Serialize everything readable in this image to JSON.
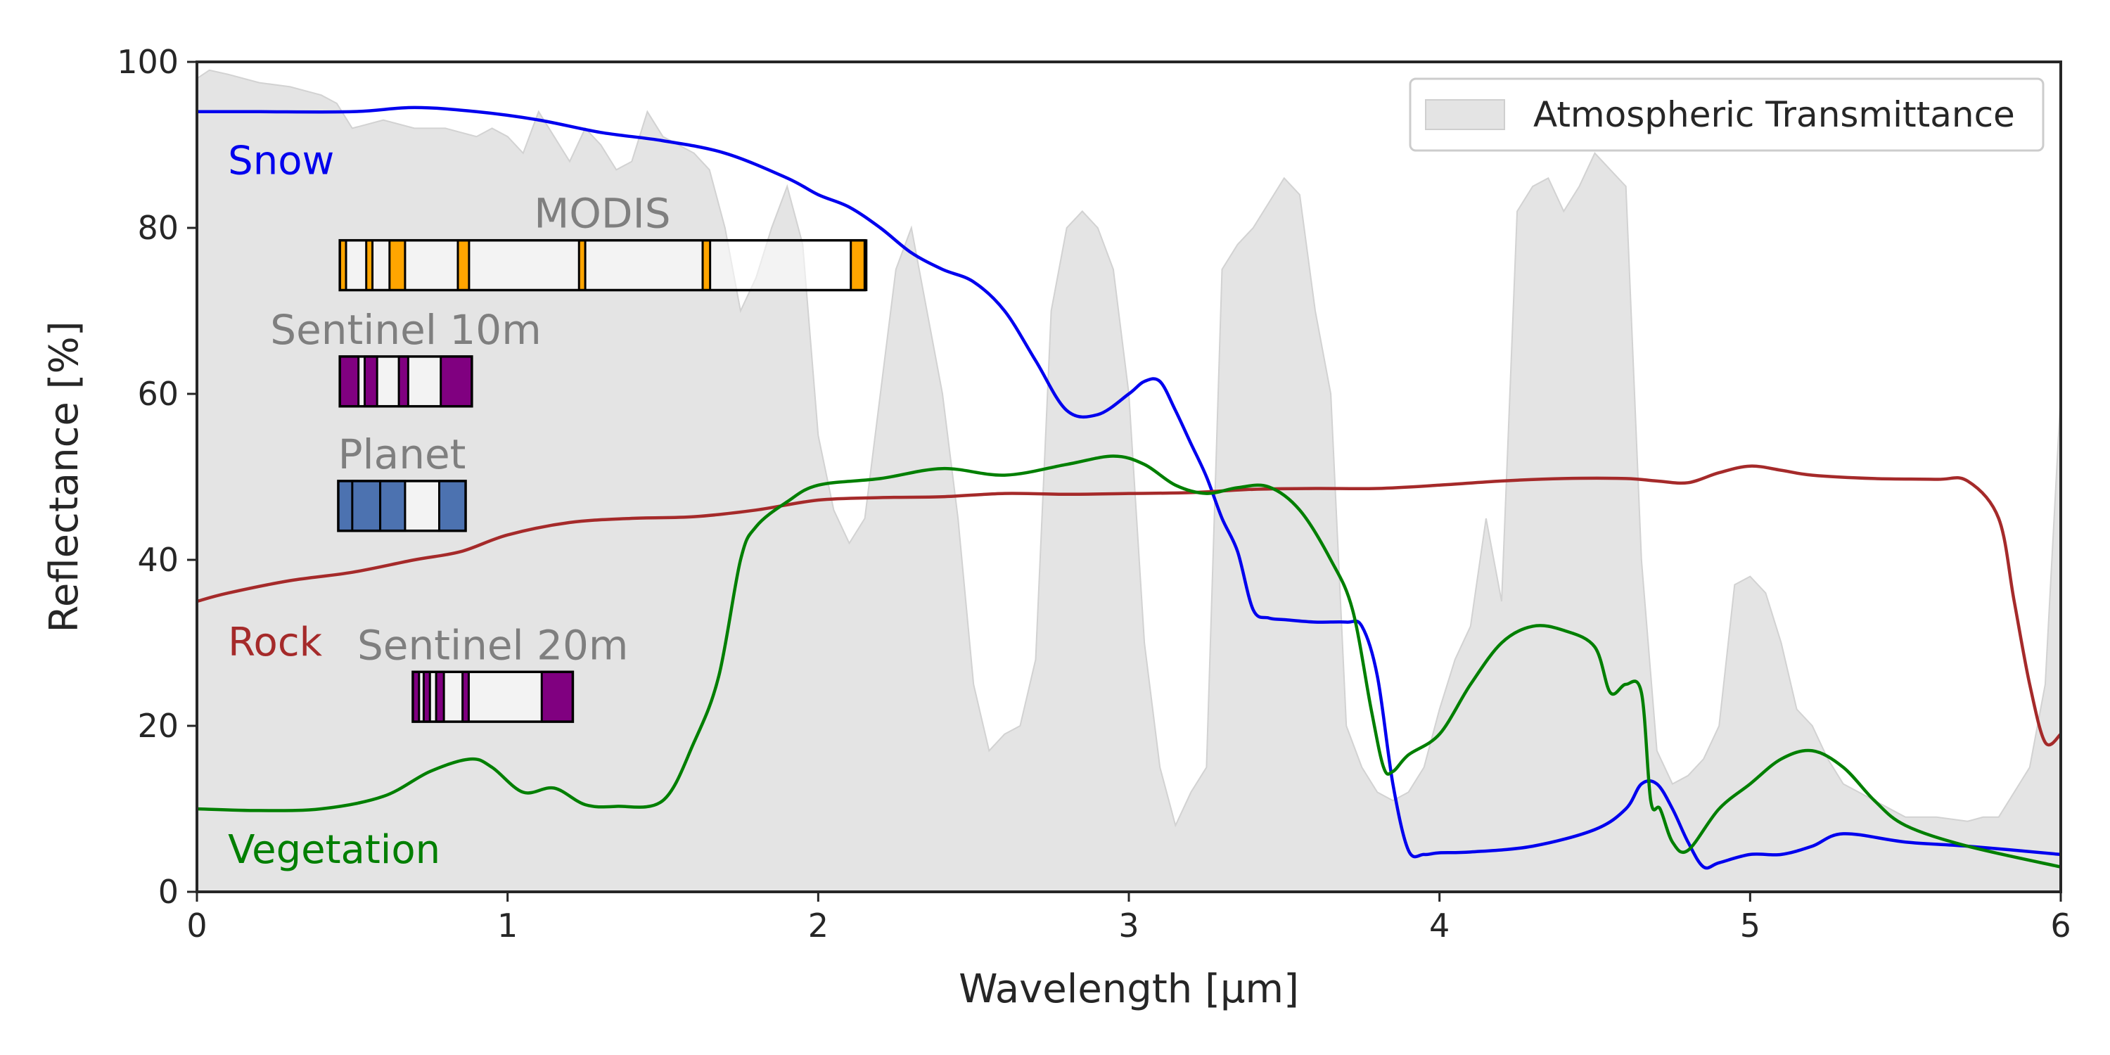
{
  "chart_data": {
    "type": "line",
    "title": "",
    "xlabel": "Wavelength [μm]",
    "ylabel": "Reflectance [%]",
    "xlim": [
      0,
      6
    ],
    "ylim": [
      0,
      100
    ],
    "x_ticks": [
      0,
      1,
      2,
      3,
      4,
      5,
      6
    ],
    "y_ticks": [
      0,
      20,
      40,
      60,
      80,
      100
    ],
    "grid": false,
    "legend": {
      "placement": "top-right",
      "entries": [
        "Atmospheric Transmittance"
      ]
    },
    "area_series": {
      "name": "Atmospheric Transmittance",
      "color": "#e4e4e4",
      "x": [
        0,
        0.04,
        0.1,
        0.2,
        0.3,
        0.4,
        0.45,
        0.5,
        0.6,
        0.7,
        0.8,
        0.9,
        0.95,
        1.0,
        1.05,
        1.1,
        1.15,
        1.2,
        1.25,
        1.3,
        1.35,
        1.4,
        1.45,
        1.5,
        1.55,
        1.6,
        1.65,
        1.7,
        1.75,
        1.8,
        1.85,
        1.9,
        1.95,
        2.0,
        2.05,
        2.1,
        2.15,
        2.2,
        2.25,
        2.3,
        2.35,
        2.4,
        2.45,
        2.5,
        2.55,
        2.6,
        2.65,
        2.7,
        2.75,
        2.8,
        2.85,
        2.9,
        2.95,
        3.0,
        3.05,
        3.1,
        3.15,
        3.2,
        3.25,
        3.3,
        3.35,
        3.4,
        3.45,
        3.5,
        3.55,
        3.6,
        3.65,
        3.7,
        3.75,
        3.8,
        3.85,
        3.9,
        3.95,
        4.0,
        4.05,
        4.1,
        4.15,
        4.2,
        4.25,
        4.3,
        4.35,
        4.4,
        4.45,
        4.5,
        4.55,
        4.6,
        4.65,
        4.7,
        4.75,
        4.8,
        4.85,
        4.9,
        4.95,
        5.0,
        5.05,
        5.1,
        5.15,
        5.2,
        5.25,
        5.3,
        5.35,
        5.4,
        5.5,
        5.6,
        5.7,
        5.75,
        5.8,
        5.85,
        5.9,
        5.95,
        6.0
      ],
      "y": [
        98,
        99,
        98.5,
        97.5,
        97,
        96,
        95,
        92,
        93,
        92,
        92,
        91,
        92,
        91,
        89,
        94,
        91,
        88,
        92,
        90,
        87,
        88,
        94,
        91,
        90,
        89,
        87,
        80,
        70,
        74,
        80,
        85,
        78,
        55,
        46,
        42,
        45,
        60,
        75,
        80,
        70,
        60,
        45,
        25,
        17,
        19,
        20,
        28,
        70,
        80,
        82,
        80,
        75,
        60,
        30,
        15,
        8,
        12,
        15,
        75,
        78,
        80,
        83,
        86,
        84,
        70,
        60,
        20,
        15,
        12,
        11,
        12,
        15,
        22,
        28,
        32,
        45,
        35,
        82,
        85,
        86,
        82,
        85,
        89,
        87,
        85,
        40,
        17,
        13,
        14,
        16,
        20,
        37,
        38,
        36,
        30,
        22,
        20,
        16,
        13,
        12,
        11,
        9,
        9,
        8.5,
        9,
        9,
        12,
        15,
        25,
        60
      ]
    },
    "series": [
      {
        "name": "Snow",
        "color": "#0000ee",
        "x": [
          0,
          0.2,
          0.5,
          0.7,
          0.9,
          1.1,
          1.3,
          1.5,
          1.7,
          1.9,
          2.0,
          2.1,
          2.2,
          2.3,
          2.4,
          2.5,
          2.6,
          2.7,
          2.8,
          2.9,
          3.0,
          3.05,
          3.1,
          3.15,
          3.2,
          3.25,
          3.3,
          3.35,
          3.4,
          3.45,
          3.5,
          3.6,
          3.7,
          3.75,
          3.8,
          3.85,
          3.9,
          3.95,
          4.0,
          4.1,
          4.3,
          4.5,
          4.6,
          4.65,
          4.7,
          4.75,
          4.8,
          4.85,
          4.9,
          5.0,
          5.1,
          5.2,
          5.3,
          5.5,
          5.7,
          6.0
        ],
        "y": [
          94,
          94,
          94,
          94.5,
          94,
          93,
          91.5,
          90.5,
          89,
          86,
          84,
          82.5,
          80,
          77,
          75,
          73.5,
          70,
          64,
          58,
          57.5,
          60,
          61.5,
          61.5,
          58,
          54,
          50,
          45,
          41,
          34,
          33,
          32.8,
          32.5,
          32.5,
          32,
          26,
          13,
          5,
          4.5,
          4.7,
          4.8,
          5.5,
          7.5,
          10,
          13,
          13,
          10,
          6,
          3,
          3.5,
          4.5,
          4.5,
          5.5,
          7,
          6,
          5.5,
          4.5
        ]
      },
      {
        "name": "Rock",
        "color": "#a52a2a",
        "x": [
          0,
          0.1,
          0.3,
          0.5,
          0.7,
          0.85,
          1.0,
          1.2,
          1.4,
          1.6,
          1.8,
          2.0,
          2.2,
          2.4,
          2.6,
          2.8,
          3.0,
          3.2,
          3.4,
          3.6,
          3.8,
          4.0,
          4.2,
          4.4,
          4.6,
          4.7,
          4.8,
          4.9,
          5.0,
          5.1,
          5.2,
          5.4,
          5.6,
          5.7,
          5.8,
          5.85,
          5.9,
          5.95,
          6.0
        ],
        "y": [
          35,
          36,
          37.5,
          38.5,
          40,
          41,
          43,
          44.5,
          45,
          45.2,
          46,
          47.2,
          47.5,
          47.6,
          48,
          47.9,
          48,
          48.1,
          48.5,
          48.6,
          48.6,
          49,
          49.5,
          49.8,
          49.8,
          49.5,
          49.3,
          50.5,
          51.3,
          50.8,
          50.2,
          49.8,
          49.7,
          49.5,
          45,
          35,
          25,
          18,
          19
        ]
      },
      {
        "name": "Vegetation",
        "color": "#007f00",
        "x": [
          0,
          0.2,
          0.4,
          0.6,
          0.75,
          0.88,
          0.95,
          1.05,
          1.15,
          1.25,
          1.35,
          1.5,
          1.6,
          1.68,
          1.75,
          1.8,
          1.9,
          2.0,
          2.2,
          2.4,
          2.6,
          2.8,
          2.95,
          3.05,
          3.15,
          3.25,
          3.35,
          3.45,
          3.55,
          3.65,
          3.72,
          3.78,
          3.82,
          3.85,
          3.9,
          4.0,
          4.1,
          4.2,
          4.3,
          4.4,
          4.5,
          4.55,
          4.6,
          4.65,
          4.68,
          4.71,
          4.75,
          4.8,
          4.9,
          5.0,
          5.1,
          5.2,
          5.3,
          5.4,
          5.5,
          5.7,
          6.0
        ],
        "y": [
          10,
          9.8,
          10,
          11.5,
          14.5,
          16,
          15,
          12,
          12.5,
          10.5,
          10.3,
          11,
          18,
          26,
          40,
          44,
          47,
          49,
          49.8,
          51,
          50.2,
          51.5,
          52.5,
          51.5,
          49,
          48,
          48.7,
          48.8,
          46,
          40,
          34,
          22,
          15,
          14.5,
          16.5,
          19,
          25,
          30,
          32,
          31.5,
          29.5,
          24,
          25,
          24,
          11,
          10,
          6,
          5,
          10,
          13,
          16,
          17,
          15,
          11,
          8,
          5.5,
          3
        ]
      }
    ],
    "series_labels": [
      {
        "text": "Snow",
        "color": "#0000ee"
      },
      {
        "text": "Rock",
        "color": "#a52a2a"
      },
      {
        "text": "Vegetation",
        "color": "#007f00"
      }
    ],
    "sensor_bands": [
      {
        "name": "MODIS",
        "fill": "#ffa500",
        "x_range": [
          0.46,
          2.15
        ],
        "y_range": [
          72.5,
          78.5
        ],
        "bands": [
          [
            0.46,
            0.48
          ],
          [
            0.545,
            0.565
          ],
          [
            0.62,
            0.67
          ],
          [
            0.84,
            0.876
          ],
          [
            1.23,
            1.25
          ],
          [
            1.628,
            1.652
          ],
          [
            2.105,
            2.155
          ]
        ]
      },
      {
        "name": "Sentinel 10m",
        "fill": "#800080",
        "x_range": [
          0.46,
          0.885
        ],
        "y_range": [
          58.5,
          64.5
        ],
        "bands": [
          [
            0.46,
            0.52
          ],
          [
            0.54,
            0.58
          ],
          [
            0.65,
            0.68
          ],
          [
            0.785,
            0.885
          ]
        ]
      },
      {
        "name": "Planet",
        "fill": "#4c72b0",
        "x_range": [
          0.455,
          0.865
        ],
        "y_range": [
          43.5,
          49.5
        ],
        "bands": [
          [
            0.455,
            0.515
          ],
          [
            0.5,
            0.59
          ],
          [
            0.59,
            0.67
          ],
          [
            0.78,
            0.865
          ]
        ]
      },
      {
        "name": "Sentinel 20m",
        "fill": "#800080",
        "x_range": [
          0.695,
          1.21
        ],
        "y_range": [
          20.5,
          26.5
        ],
        "bands": [
          [
            0.695,
            0.715
          ],
          [
            0.73,
            0.75
          ],
          [
            0.77,
            0.795
          ],
          [
            0.855,
            0.875
          ],
          [
            1.11,
            1.21
          ]
        ]
      }
    ]
  }
}
